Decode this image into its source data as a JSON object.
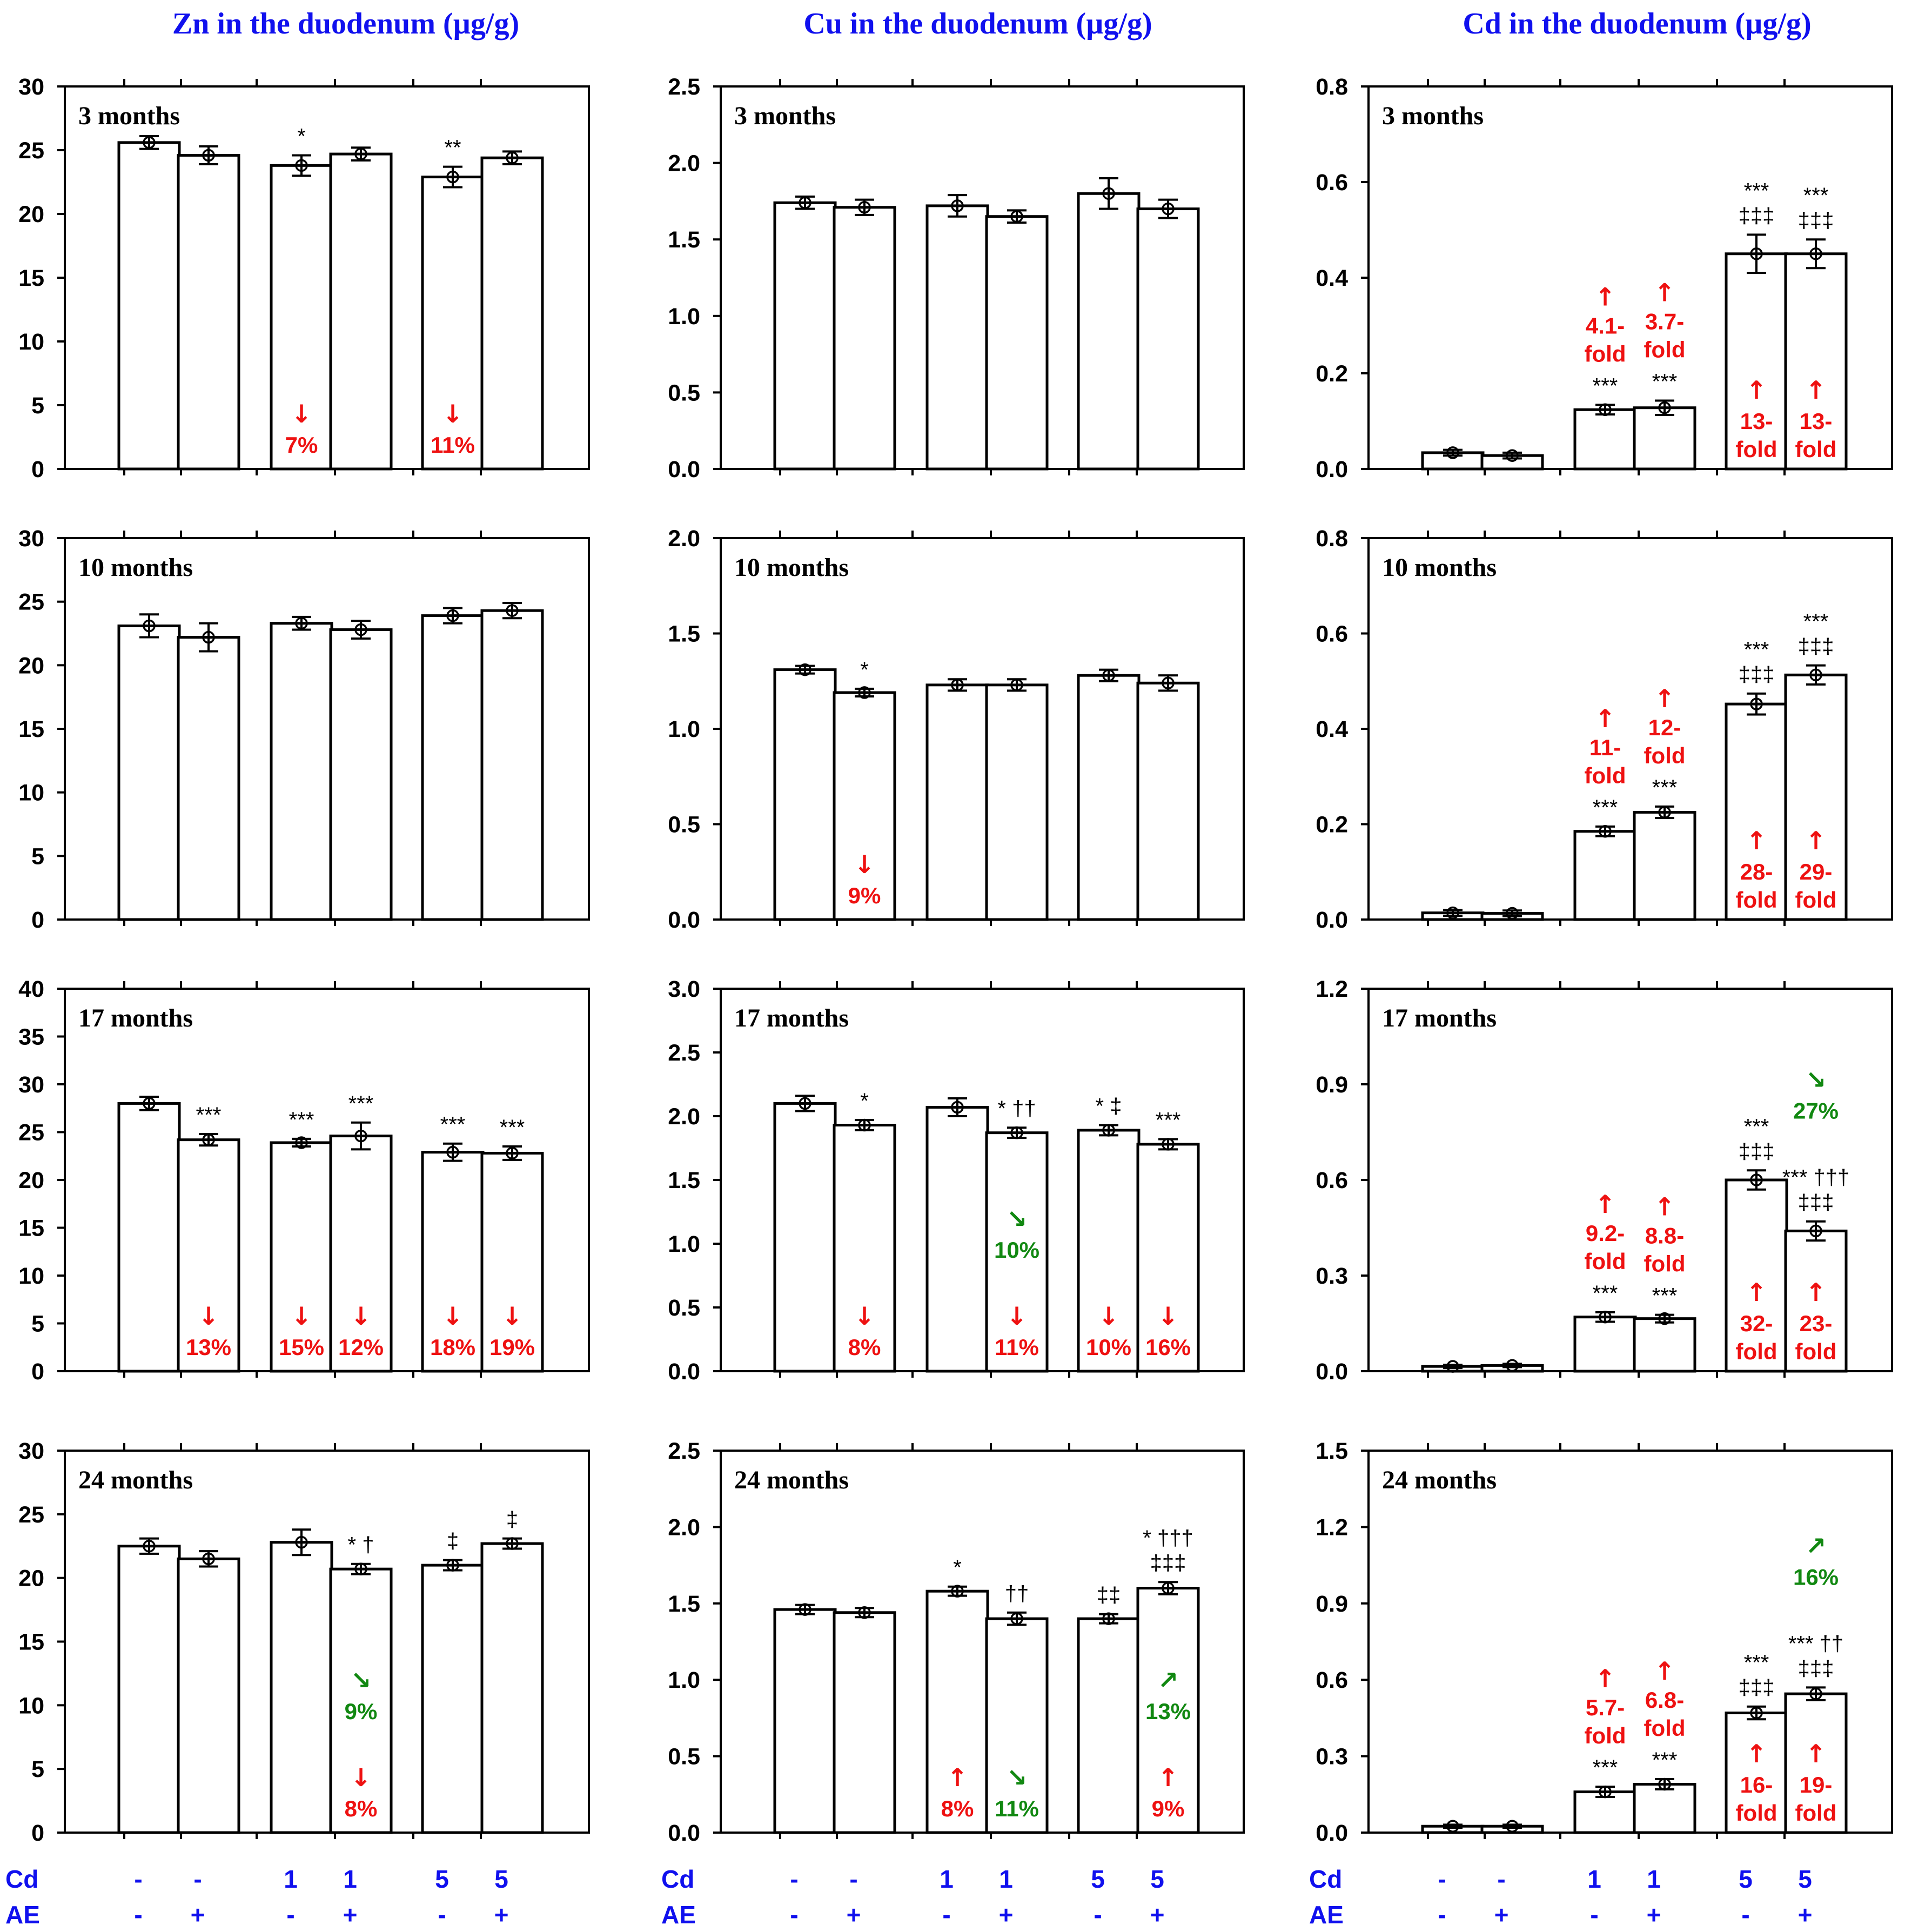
{
  "colors": {
    "title": "#1010ee",
    "decrease": "#ee1111",
    "increase": "#ee1111",
    "change_with_ae": "#118811",
    "text": "#000000"
  },
  "columns": [
    {
      "title": "Zn in the duodenum (µg/g)"
    },
    {
      "title": "Cu in the duodenum (µg/g)"
    },
    {
      "title": "Cd in the duodenum (µg/g)"
    }
  ],
  "group_labels": {
    "cd_label": "Cd",
    "ae_label": "AE",
    "cd": [
      "-",
      "-",
      "1",
      "1",
      "5",
      "5"
    ],
    "ae": [
      "-",
      "+",
      "-",
      "+",
      "-",
      "+"
    ]
  },
  "chart_data": [
    {
      "type": "bar",
      "id": "zn-3",
      "title": "3 months",
      "ylim": [
        0,
        30
      ],
      "yticks": [
        "0",
        "5",
        "10",
        "15",
        "20",
        "25",
        "30"
      ],
      "values": [
        25.6,
        24.6,
        23.8,
        24.7,
        22.9,
        24.4
      ],
      "errors": [
        0.5,
        0.7,
        0.8,
        0.5,
        0.8,
        0.5
      ],
      "sig": [
        null,
        null,
        "*",
        null,
        "**",
        null
      ],
      "ann": [
        null,
        null,
        {
          "arrow": "↓",
          "text": "7%",
          "color": "red"
        },
        null,
        {
          "arrow": "↓",
          "text": "11%",
          "color": "red"
        },
        null
      ]
    },
    {
      "type": "bar",
      "id": "cu-3",
      "title": "3 months",
      "ylim": [
        0,
        2.5
      ],
      "yticks": [
        "0.0",
        "0.5",
        "1.0",
        "1.5",
        "2.0",
        "2.5"
      ],
      "values": [
        1.74,
        1.71,
        1.72,
        1.65,
        1.8,
        1.7
      ],
      "errors": [
        0.04,
        0.05,
        0.07,
        0.04,
        0.1,
        0.06
      ],
      "sig": [
        null,
        null,
        null,
        null,
        null,
        null
      ],
      "ann": [
        null,
        null,
        null,
        null,
        null,
        null
      ]
    },
    {
      "type": "bar",
      "id": "cd-3",
      "title": "3 months",
      "ylim": [
        0,
        0.8
      ],
      "yticks": [
        "0.0",
        "0.2",
        "0.4",
        "0.6",
        "0.8"
      ],
      "values": [
        0.034,
        0.028,
        0.124,
        0.128,
        0.45,
        0.45
      ],
      "errors": [
        0.006,
        0.006,
        0.01,
        0.015,
        0.04,
        0.03
      ],
      "sig": [
        null,
        null,
        "***",
        "***",
        "***\n‡‡‡",
        "***\n‡‡‡"
      ],
      "ann": [
        null,
        null,
        {
          "arrow": "↑",
          "text": "4.1-\nfold",
          "color": "red",
          "pos": "above"
        },
        {
          "arrow": "↑",
          "text": "3.7-\nfold",
          "color": "red",
          "pos": "above"
        },
        {
          "arrow": "↑",
          "text": "13-\nfold",
          "color": "red"
        },
        {
          "arrow": "↑",
          "text": "13-\nfold",
          "color": "red"
        }
      ]
    },
    {
      "type": "bar",
      "id": "zn-10",
      "title": "10 months",
      "ylim": [
        0,
        30
      ],
      "yticks": [
        "0",
        "5",
        "10",
        "15",
        "20",
        "25",
        "30"
      ],
      "values": [
        23.1,
        22.2,
        23.3,
        22.8,
        23.9,
        24.3
      ],
      "errors": [
        0.9,
        1.1,
        0.5,
        0.7,
        0.6,
        0.6
      ],
      "sig": [
        null,
        null,
        null,
        null,
        null,
        null
      ],
      "ann": [
        null,
        null,
        null,
        null,
        null,
        null
      ]
    },
    {
      "type": "bar",
      "id": "cu-10",
      "title": "10 months",
      "ylim": [
        0,
        2.0
      ],
      "yticks": [
        "0.0",
        "0.5",
        "1.0",
        "1.5",
        "2.0"
      ],
      "values": [
        1.31,
        1.19,
        1.23,
        1.23,
        1.28,
        1.24
      ],
      "errors": [
        0.02,
        0.02,
        0.03,
        0.03,
        0.03,
        0.04
      ],
      "sig": [
        null,
        "*",
        null,
        null,
        null,
        null
      ],
      "ann": [
        null,
        {
          "arrow": "↓",
          "text": "9%",
          "color": "red"
        },
        null,
        null,
        null,
        null
      ]
    },
    {
      "type": "bar",
      "id": "cd-10",
      "title": "10 months",
      "ylim": [
        0,
        0.8
      ],
      "yticks": [
        "0.0",
        "0.2",
        "0.4",
        "0.6",
        "0.8"
      ],
      "values": [
        0.014,
        0.013,
        0.185,
        0.225,
        0.452,
        0.513
      ],
      "errors": [
        0.006,
        0.006,
        0.01,
        0.012,
        0.022,
        0.02
      ],
      "sig": [
        null,
        null,
        "***",
        "***",
        "***\n‡‡‡",
        "***\n‡‡‡"
      ],
      "ann": [
        null,
        null,
        {
          "arrow": "↑",
          "text": "11-\nfold",
          "color": "red",
          "pos": "above"
        },
        {
          "arrow": "↑",
          "text": "12-\nfold",
          "color": "red",
          "pos": "above"
        },
        {
          "arrow": "↑",
          "text": "28-\nfold",
          "color": "red"
        },
        {
          "arrow": "↑",
          "text": "29-\nfold",
          "color": "red"
        }
      ]
    },
    {
      "type": "bar",
      "id": "zn-17",
      "title": "17 months",
      "ylim": [
        0,
        40
      ],
      "yticks": [
        "0",
        "5",
        "10",
        "15",
        "20",
        "25",
        "30",
        "35",
        "40"
      ],
      "values": [
        28.0,
        24.2,
        23.9,
        24.6,
        22.9,
        22.8
      ],
      "errors": [
        0.7,
        0.6,
        0.4,
        1.4,
        0.9,
        0.7
      ],
      "sig": [
        null,
        "***",
        "***",
        "***",
        "***",
        "***"
      ],
      "ann": [
        null,
        {
          "arrow": "↓",
          "text": "13%",
          "color": "red"
        },
        {
          "arrow": "↓",
          "text": "15%",
          "color": "red"
        },
        {
          "arrow": "↓",
          "text": "12%",
          "color": "red"
        },
        {
          "arrow": "↓",
          "text": "18%",
          "color": "red"
        },
        {
          "arrow": "↓",
          "text": "19%",
          "color": "red"
        }
      ]
    },
    {
      "type": "bar",
      "id": "cu-17",
      "title": "17 months",
      "ylim": [
        0,
        3.0
      ],
      "yticks": [
        "0.0",
        "0.5",
        "1.0",
        "1.5",
        "2.0",
        "2.5",
        "3.0"
      ],
      "values": [
        2.1,
        1.93,
        2.07,
        1.87,
        1.89,
        1.78
      ],
      "errors": [
        0.06,
        0.04,
        0.07,
        0.04,
        0.04,
        0.04
      ],
      "sig": [
        null,
        "*",
        null,
        "* ††",
        "* ‡",
        "***"
      ],
      "ann": [
        null,
        {
          "arrow": "↓",
          "text": "8%",
          "color": "red"
        },
        null,
        {
          "arrow": "↓",
          "text": "11%",
          "color": "red",
          "extra": {
            "arrow": "↘",
            "text": "10%",
            "color": "green"
          }
        },
        {
          "arrow": "↓",
          "text": "10%",
          "color": "red"
        },
        {
          "arrow": "↓",
          "text": "16%",
          "color": "red"
        }
      ]
    },
    {
      "type": "bar",
      "id": "cd-17",
      "title": "17 months",
      "ylim": [
        0,
        1.2
      ],
      "yticks": [
        "0.0",
        "0.3",
        "0.6",
        "0.9",
        "1.2"
      ],
      "values": [
        0.015,
        0.018,
        0.17,
        0.165,
        0.6,
        0.44
      ],
      "errors": [
        0.005,
        0.005,
        0.015,
        0.012,
        0.03,
        0.03
      ],
      "sig": [
        null,
        null,
        "***",
        "***",
        "***\n‡‡‡",
        "*** †††\n‡‡‡"
      ],
      "ann": [
        null,
        null,
        {
          "arrow": "↑",
          "text": "9.2-\nfold",
          "color": "red",
          "pos": "above"
        },
        {
          "arrow": "↑",
          "text": "8.8-\nfold",
          "color": "red",
          "pos": "above"
        },
        {
          "arrow": "↑",
          "text": "32-\nfold",
          "color": "red"
        },
        {
          "arrow": "↑",
          "text": "23-\nfold",
          "color": "red",
          "extra": {
            "arrow": "↘",
            "text": "27%",
            "color": "green",
            "pos": "top"
          }
        }
      ]
    },
    {
      "type": "bar",
      "id": "zn-24",
      "title": "24 months",
      "ylim": [
        0,
        30
      ],
      "yticks": [
        "0",
        "5",
        "10",
        "15",
        "20",
        "25",
        "30"
      ],
      "values": [
        22.5,
        21.5,
        22.8,
        20.7,
        21.0,
        22.7
      ],
      "errors": [
        0.6,
        0.6,
        1.0,
        0.4,
        0.4,
        0.4
      ],
      "sig": [
        null,
        null,
        null,
        "* †",
        "‡",
        "‡"
      ],
      "ann": [
        null,
        null,
        null,
        {
          "arrow": "↓",
          "text": "8%",
          "color": "red",
          "extra": {
            "arrow": "↘",
            "text": "9%",
            "color": "green"
          }
        },
        null,
        null
      ]
    },
    {
      "type": "bar",
      "id": "cu-24",
      "title": "24 months",
      "ylim": [
        0,
        2.5
      ],
      "yticks": [
        "0.0",
        "0.5",
        "1.0",
        "1.5",
        "2.0",
        "2.5"
      ],
      "values": [
        1.46,
        1.44,
        1.58,
        1.4,
        1.4,
        1.6
      ],
      "errors": [
        0.03,
        0.03,
        0.03,
        0.04,
        0.03,
        0.04
      ],
      "sig": [
        null,
        null,
        "*",
        "††",
        "‡‡",
        "* †††\n‡‡‡"
      ],
      "ann": [
        null,
        null,
        {
          "arrow": "↑",
          "text": "8%",
          "color": "red"
        },
        {
          "arrow": "↘",
          "text": "11%",
          "color": "green"
        },
        null,
        {
          "arrow": "↑",
          "text": "9%",
          "color": "red",
          "extra": {
            "arrow": "↗",
            "text": "13%",
            "color": "green"
          }
        }
      ]
    },
    {
      "type": "bar",
      "id": "cd-24",
      "title": "24 months",
      "ylim": [
        0,
        1.5
      ],
      "yticks": [
        "0.0",
        "0.3",
        "0.6",
        "0.9",
        "1.2",
        "1.5"
      ],
      "values": [
        0.025,
        0.025,
        0.16,
        0.19,
        0.47,
        0.545
      ],
      "errors": [
        0.006,
        0.006,
        0.02,
        0.02,
        0.025,
        0.025
      ],
      "sig": [
        null,
        null,
        "***",
        "***",
        "***\n‡‡‡",
        "*** ††\n‡‡‡"
      ],
      "ann": [
        null,
        null,
        {
          "arrow": "↑",
          "text": "5.7-\nfold",
          "color": "red",
          "pos": "above"
        },
        {
          "arrow": "↑",
          "text": "6.8-\nfold",
          "color": "red",
          "pos": "above"
        },
        {
          "arrow": "↑",
          "text": "16-\nfold",
          "color": "red"
        },
        {
          "arrow": "↑",
          "text": "19-\nfold",
          "color": "red",
          "extra": {
            "arrow": "↗",
            "text": "16%",
            "color": "green",
            "pos": "top"
          }
        }
      ]
    }
  ]
}
